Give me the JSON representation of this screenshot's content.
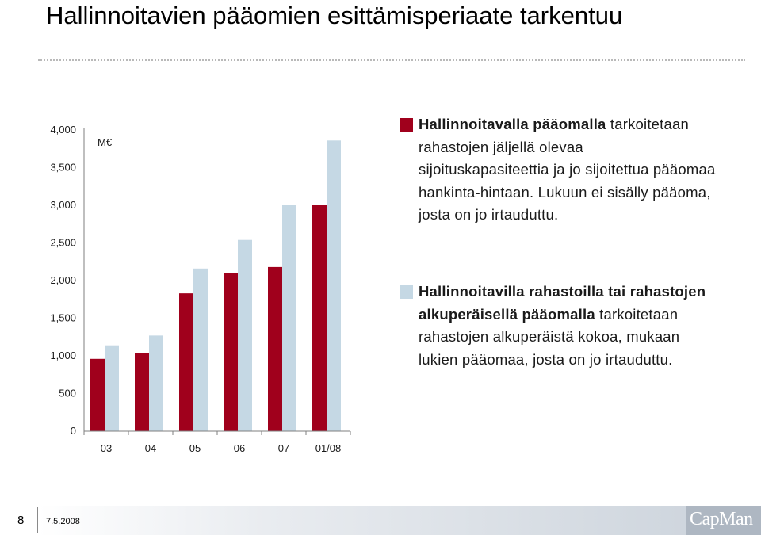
{
  "title": "Hallinnoitavien pääomien esittämisperiaate tarkentuu",
  "chart_data": {
    "type": "bar",
    "unit_label": "M€",
    "categories": [
      "03",
      "04",
      "05",
      "06",
      "07",
      "01/08"
    ],
    "ylim": [
      0,
      4000
    ],
    "yticks": [
      "0",
      "500",
      "1,000",
      "1,500",
      "2,000",
      "2,500",
      "3,000",
      "3,500",
      "4,000"
    ],
    "ytick_values": [
      0,
      500,
      1000,
      1500,
      2000,
      2500,
      3000,
      3500,
      4000
    ],
    "series": [
      {
        "values": [
          960,
          1040,
          1830,
          2100,
          2180,
          3000
        ]
      },
      {
        "values": [
          1140,
          1270,
          2160,
          2540,
          3000,
          3860
        ]
      }
    ],
    "grid": false
  },
  "legend": [
    {
      "color": "#a0001c",
      "bold": "Hallinnoitavalla pääomalla",
      "rest": "tarkoitetaan rahastojen jäljellä olevaa sijoituskapasiteettia ja jo sijoitettua pääomaa hankinta-hintaan. Lukuun ei sisälly pääoma, josta on jo irtauduttu."
    },
    {
      "color": "#c5d8e4",
      "bold": "Hallinnoitavilla rahastoilla tai rahastojen alkuperäisellä pääomalla",
      "rest": "tarkoitetaan rahastojen alkuperäistä kokoa, mukaan lukien pääomaa, josta on jo irtauduttu."
    }
  ],
  "footer": {
    "page_number": "8",
    "date": "7.5.2008",
    "logo_text": "CapMan"
  },
  "colors": {
    "series_1": "#a0001c",
    "series_2": "#c5d8e4",
    "axis": "#7f7f7f"
  }
}
